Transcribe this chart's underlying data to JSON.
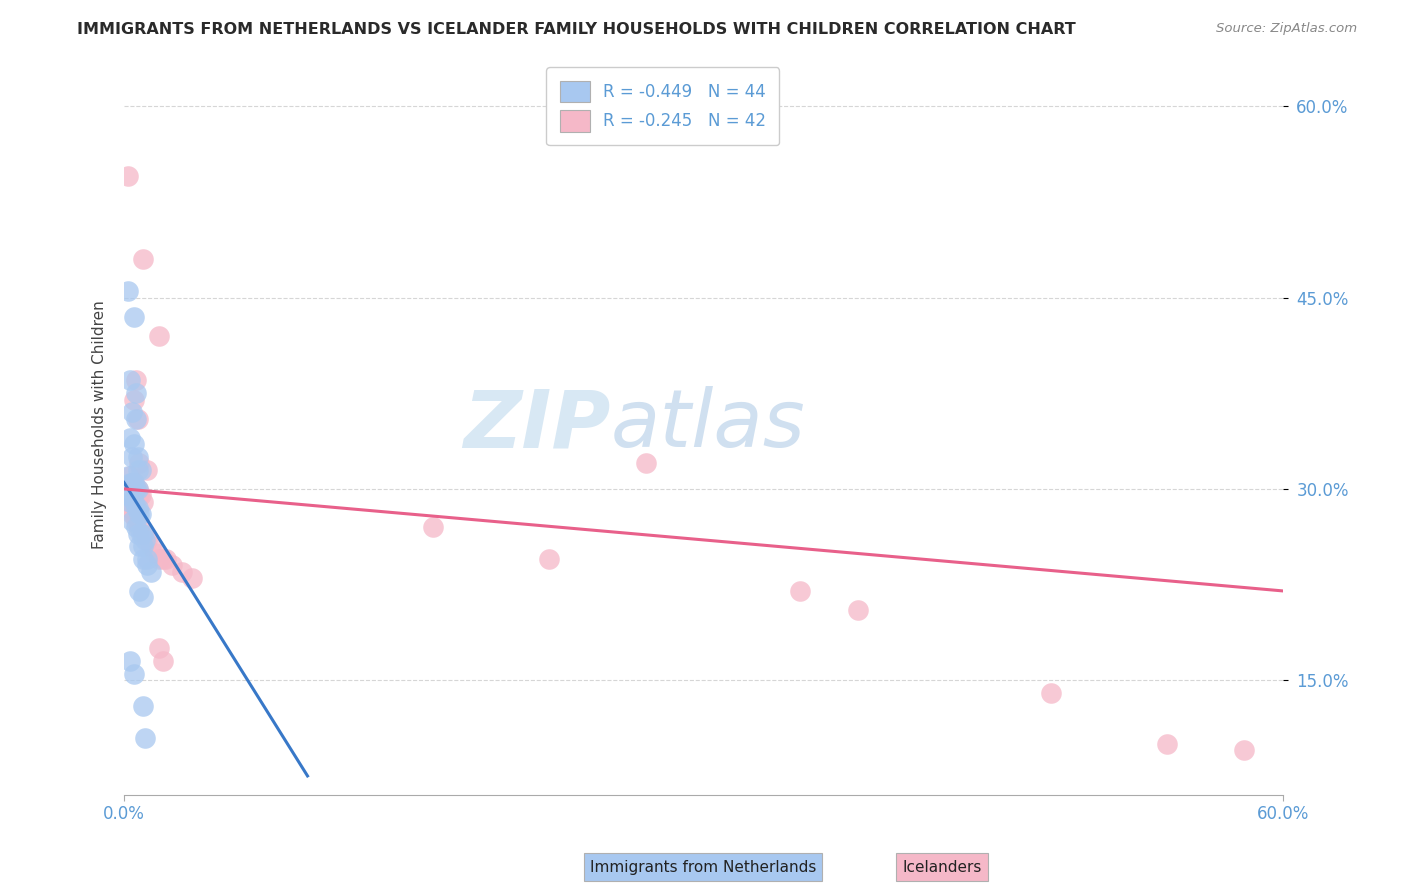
{
  "title": "IMMIGRANTS FROM NETHERLANDS VS ICELANDER FAMILY HOUSEHOLDS WITH CHILDREN CORRELATION CHART",
  "source": "Source: ZipAtlas.com",
  "ylabel": "Family Households with Children",
  "xmin": 0.0,
  "xmax": 0.6,
  "ymin": 0.06,
  "ymax": 0.64,
  "yticks": [
    0.15,
    0.3,
    0.45,
    0.6
  ],
  "ytick_labels": [
    "15.0%",
    "30.0%",
    "45.0%",
    "60.0%"
  ],
  "watermark_zip": "ZIP",
  "watermark_atlas": "atlas",
  "legend_r1": "R = -0.449",
  "legend_n1": "N = 44",
  "legend_r2": "R = -0.245",
  "legend_n2": "N = 42",
  "legend_label1": "Immigrants from Netherlands",
  "legend_label2": "Icelanders",
  "color_blue": "#a8c8f0",
  "color_pink": "#f5b8c8",
  "line_color_blue": "#3878c8",
  "line_color_pink": "#e8608a",
  "blue_scatter": [
    [
      0.002,
      0.455
    ],
    [
      0.005,
      0.435
    ],
    [
      0.003,
      0.385
    ],
    [
      0.006,
      0.375
    ],
    [
      0.004,
      0.36
    ],
    [
      0.006,
      0.355
    ],
    [
      0.003,
      0.34
    ],
    [
      0.005,
      0.335
    ],
    [
      0.004,
      0.325
    ],
    [
      0.007,
      0.325
    ],
    [
      0.007,
      0.315
    ],
    [
      0.009,
      0.315
    ],
    [
      0.002,
      0.31
    ],
    [
      0.003,
      0.305
    ],
    [
      0.004,
      0.305
    ],
    [
      0.005,
      0.305
    ],
    [
      0.006,
      0.3
    ],
    [
      0.007,
      0.3
    ],
    [
      0.001,
      0.295
    ],
    [
      0.002,
      0.295
    ],
    [
      0.003,
      0.29
    ],
    [
      0.005,
      0.29
    ],
    [
      0.006,
      0.285
    ],
    [
      0.007,
      0.285
    ],
    [
      0.008,
      0.28
    ],
    [
      0.009,
      0.28
    ],
    [
      0.004,
      0.275
    ],
    [
      0.006,
      0.27
    ],
    [
      0.007,
      0.265
    ],
    [
      0.009,
      0.265
    ],
    [
      0.01,
      0.265
    ],
    [
      0.011,
      0.26
    ],
    [
      0.008,
      0.255
    ],
    [
      0.01,
      0.255
    ],
    [
      0.01,
      0.245
    ],
    [
      0.012,
      0.245
    ],
    [
      0.012,
      0.24
    ],
    [
      0.014,
      0.235
    ],
    [
      0.008,
      0.22
    ],
    [
      0.01,
      0.215
    ],
    [
      0.003,
      0.165
    ],
    [
      0.005,
      0.155
    ],
    [
      0.01,
      0.13
    ],
    [
      0.011,
      0.105
    ]
  ],
  "pink_scatter": [
    [
      0.002,
      0.545
    ],
    [
      0.01,
      0.48
    ],
    [
      0.018,
      0.42
    ],
    [
      0.006,
      0.385
    ],
    [
      0.005,
      0.37
    ],
    [
      0.007,
      0.355
    ],
    [
      0.008,
      0.32
    ],
    [
      0.012,
      0.315
    ],
    [
      0.003,
      0.31
    ],
    [
      0.004,
      0.305
    ],
    [
      0.005,
      0.305
    ],
    [
      0.006,
      0.3
    ],
    [
      0.007,
      0.3
    ],
    [
      0.008,
      0.295
    ],
    [
      0.009,
      0.295
    ],
    [
      0.01,
      0.29
    ],
    [
      0.002,
      0.29
    ],
    [
      0.003,
      0.285
    ],
    [
      0.004,
      0.28
    ],
    [
      0.005,
      0.28
    ],
    [
      0.006,
      0.275
    ],
    [
      0.008,
      0.27
    ],
    [
      0.01,
      0.265
    ],
    [
      0.012,
      0.26
    ],
    [
      0.014,
      0.255
    ],
    [
      0.016,
      0.25
    ],
    [
      0.018,
      0.245
    ],
    [
      0.02,
      0.245
    ],
    [
      0.022,
      0.245
    ],
    [
      0.025,
      0.24
    ],
    [
      0.03,
      0.235
    ],
    [
      0.035,
      0.23
    ],
    [
      0.018,
      0.175
    ],
    [
      0.02,
      0.165
    ],
    [
      0.16,
      0.27
    ],
    [
      0.27,
      0.32
    ],
    [
      0.22,
      0.245
    ],
    [
      0.35,
      0.22
    ],
    [
      0.38,
      0.205
    ],
    [
      0.48,
      0.14
    ],
    [
      0.54,
      0.1
    ],
    [
      0.58,
      0.095
    ]
  ],
  "blue_line_x": [
    0.0,
    0.095
  ],
  "blue_line_y": [
    0.305,
    0.075
  ],
  "pink_line_x": [
    0.0,
    0.6
  ],
  "pink_line_y": [
    0.3,
    0.22
  ],
  "background_color": "#ffffff",
  "grid_color": "#cccccc",
  "title_color": "#2a2a2a",
  "axis_color": "#5b9bd5",
  "watermark_color_zip": "#d8e8f4",
  "watermark_color_atlas": "#d0e0f0",
  "bottom_label_color": "#222222"
}
